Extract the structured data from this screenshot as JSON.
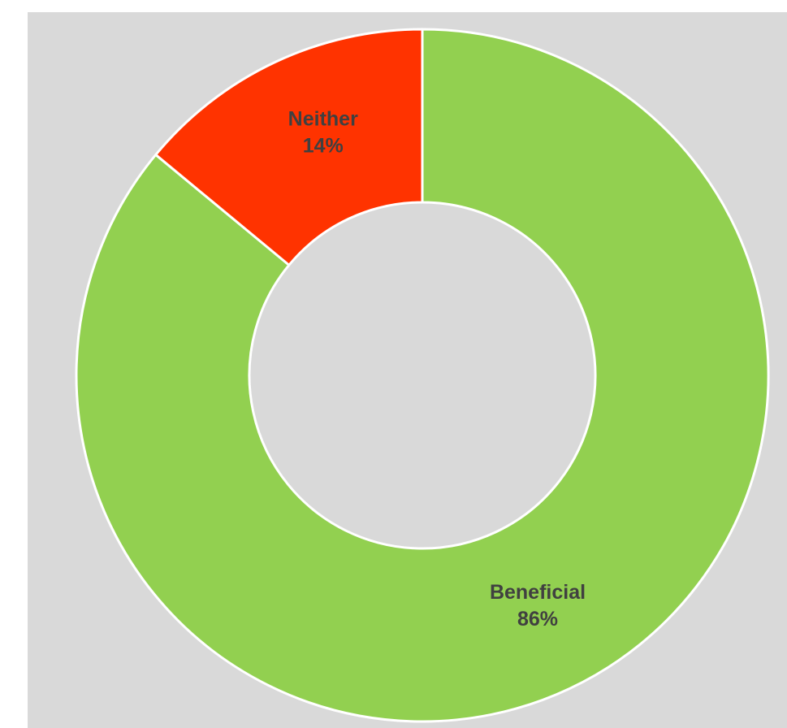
{
  "chart_data": {
    "type": "pie",
    "style": "donut",
    "title": "",
    "categories": [
      "Beneficial",
      "Neither"
    ],
    "values": [
      86,
      14
    ],
    "value_labels": [
      "86%",
      "14%"
    ],
    "colors": [
      "#92d050",
      "#ff3300"
    ],
    "background_color": "#d9d9d9",
    "label_color": "#404040",
    "legend": "none",
    "start_angle_deg": 0,
    "direction": "clockwise"
  }
}
